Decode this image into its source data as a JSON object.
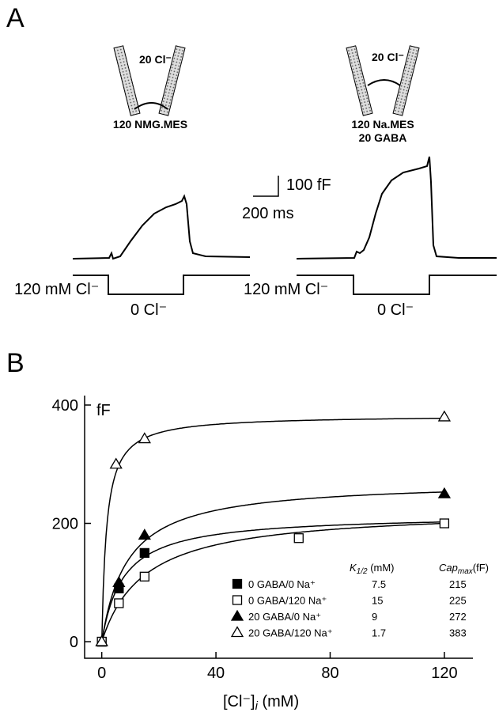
{
  "panel_a": {
    "label": "A",
    "left": {
      "pipette": "20 Cl⁻",
      "bath": [
        "120 NMG.MES"
      ],
      "protocol_high": "120 mM Cl⁻",
      "protocol_low": "0 Cl⁻"
    },
    "right": {
      "pipette": "20 Cl⁻",
      "bath": [
        "120 Na.MES",
        "20 GABA"
      ],
      "protocol_high": "120 mM Cl⁻",
      "protocol_low": "0 Cl⁻"
    },
    "scale_y": "100 fF",
    "scale_x": "200 ms"
  },
  "chart_data": {
    "type": "scatter",
    "panel_label": "B",
    "y_label": "fF",
    "x_label": {
      "main": "[Cl⁻]",
      "sub": "i",
      "unit": " (mM)"
    },
    "xlim": [
      -6,
      130
    ],
    "ylim": [
      -28,
      416
    ],
    "xticks": [
      0,
      40,
      80,
      120
    ],
    "yticks": [
      0,
      200,
      400
    ],
    "fit_headers": [
      {
        "symbol": "K",
        "sub": "1/2",
        "unit": " (mM)"
      },
      {
        "symbol": "Cap",
        "sub": "max",
        "unit": "(fF)"
      }
    ],
    "series": [
      {
        "name": "0 GABA/0 Na⁺",
        "marker": "square",
        "filled": true,
        "k_half": 7.5,
        "cap_max": 215,
        "x": [
          0,
          6,
          15
        ],
        "values": [
          0,
          90,
          150
        ]
      },
      {
        "name": "0 GABA/120 Na⁺",
        "marker": "square",
        "filled": false,
        "k_half": 15,
        "cap_max": 225,
        "x": [
          0,
          6,
          15,
          69,
          120
        ],
        "values": [
          0,
          65,
          110,
          175,
          200
        ]
      },
      {
        "name": "20 GABA/0 Na⁺",
        "marker": "triangle",
        "filled": true,
        "k_half": 9,
        "cap_max": 272,
        "x": [
          0,
          6,
          15,
          120
        ],
        "values": [
          0,
          100,
          180,
          250
        ]
      },
      {
        "name": "20 GABA/120 Na⁺",
        "marker": "triangle",
        "filled": false,
        "k_half": 1.7,
        "cap_max": 383,
        "x": [
          0,
          5,
          15,
          120
        ],
        "values": [
          0,
          300,
          343,
          380
        ]
      }
    ]
  }
}
